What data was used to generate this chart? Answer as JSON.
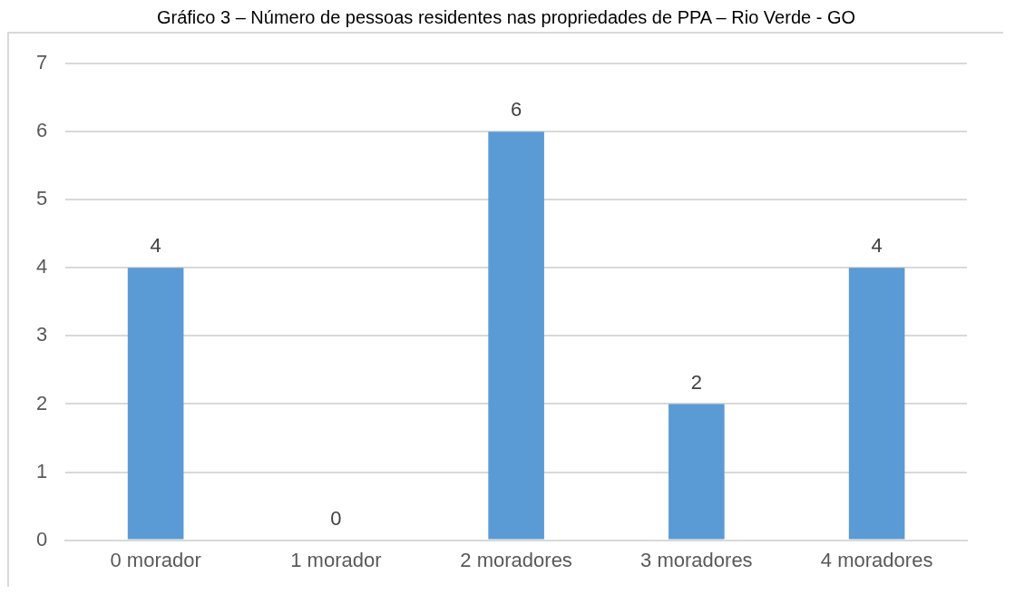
{
  "chart_data": {
    "type": "bar",
    "title": "Gráfico 3 – Número de pessoas residentes nas propriedades de PPA – Rio Verde - GO",
    "categories": [
      "0 morador",
      "1 morador",
      "2 moradores",
      "3 moradores",
      "4 moradores"
    ],
    "values": [
      4,
      0,
      6,
      2,
      4
    ],
    "color": "#5b9bd5",
    "ylim": [
      0,
      7
    ],
    "yticks": [
      0,
      1,
      2,
      3,
      4,
      5,
      6,
      7
    ],
    "grid": "y",
    "data_labels": true
  }
}
